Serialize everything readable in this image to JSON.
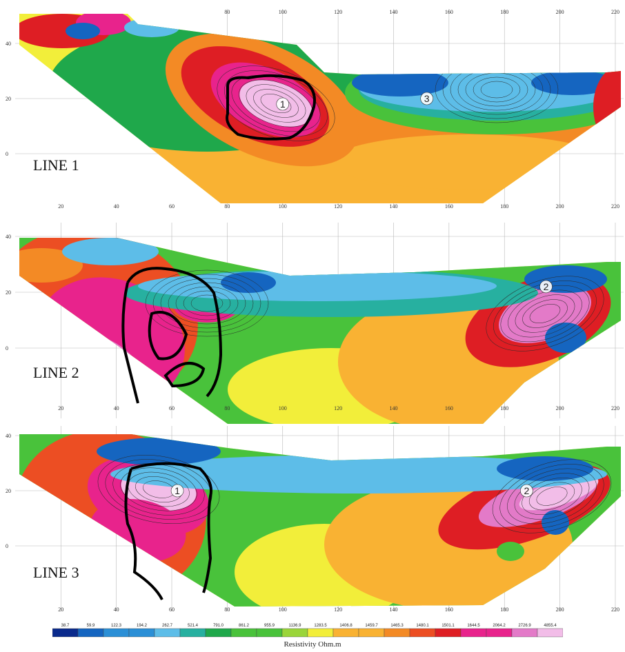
{
  "colors": {
    "scale": [
      "#0a2a8c",
      "#1565c0",
      "#2b8fd6",
      "#5dbde8",
      "#27b0a0",
      "#1fa84b",
      "#49c23b",
      "#9ad53a",
      "#f2ee3a",
      "#f9b233",
      "#f38a25",
      "#ec4e23",
      "#de1e24",
      "#e8238c",
      "#e37ac8",
      "#f2bde8"
    ],
    "contour": "#2a2a2a",
    "outline": "#000000",
    "grid": "#b8b8b8"
  },
  "chart_data": [
    {
      "type": "heatmap",
      "name": "LINE 1",
      "x_ticks": [
        80,
        100,
        120,
        140,
        160,
        180,
        200,
        220
      ],
      "y_ticks": [
        40,
        20,
        0
      ],
      "xlim": [
        5,
        222
      ],
      "ylim": [
        -20,
        50
      ],
      "anomalies": [
        {
          "label": "1",
          "x": 100,
          "y": 18,
          "level": "high"
        },
        {
          "label": "3",
          "x": 152,
          "y": 20,
          "level": "low"
        }
      ]
    },
    {
      "type": "heatmap",
      "name": "LINE 2",
      "x_ticks": [
        20,
        40,
        60,
        80,
        100,
        120,
        140,
        160,
        180,
        200,
        220
      ],
      "x_tick_labels": [
        "20",
        "40",
        "60",
        "80",
        "100",
        "120",
        "140",
        "160",
        "180",
        "200",
        "220"
      ],
      "y_ticks": [
        40,
        20,
        0
      ],
      "xlim": [
        5,
        222
      ],
      "ylim": [
        -20,
        50
      ],
      "anomalies": [
        {
          "label": "2",
          "x": 195,
          "y": 22,
          "level": "high"
        }
      ]
    },
    {
      "type": "heatmap",
      "name": "LINE 3",
      "x_ticks": [
        20,
        40,
        60,
        80,
        100,
        120,
        140,
        160,
        180,
        200,
        220
      ],
      "y_ticks": [
        40,
        20,
        0
      ],
      "xlim": [
        5,
        222
      ],
      "ylim": [
        -20,
        50
      ],
      "anomalies": [
        {
          "label": "1",
          "x": 62,
          "y": 20,
          "level": "high"
        },
        {
          "label": "2",
          "x": 188,
          "y": 20,
          "level": "high"
        }
      ]
    }
  ],
  "legend": {
    "title": "Resistivity Ohm.m",
    "values": [
      "38.7",
      "59.9",
      "122.3",
      "194.2",
      "262.7",
      "521.4",
      "791.0",
      "861.2",
      "955.9",
      "1136.9",
      "1283.5",
      "1406.8",
      "1459.7",
      "1465.3",
      "1480.1",
      "1501.1",
      "1644.5",
      "2064.2",
      "2726.9",
      "4855.4"
    ]
  }
}
